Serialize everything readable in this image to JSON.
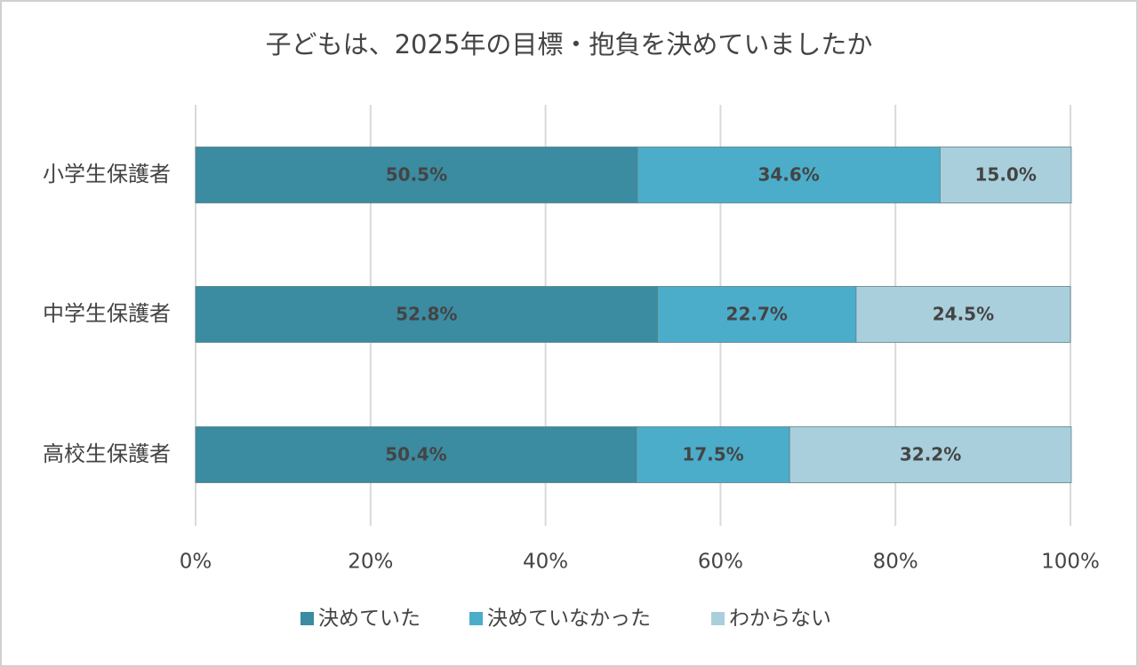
{
  "chart_data": {
    "type": "stacked_barh",
    "title": "子どもは、2025年の目標・抱負を決めていましたか",
    "categories": [
      "小学生保護者",
      "中学生保護者",
      "高校生保護者"
    ],
    "series": [
      {
        "name": "決めていた",
        "color": "#3b8ba1",
        "values": [
          50.5,
          52.8,
          50.4
        ],
        "value_labels": [
          "50.5%",
          "52.8%",
          "50.4%"
        ]
      },
      {
        "name": "決めていなかった",
        "color": "#4badca",
        "values": [
          34.6,
          22.7,
          17.5
        ],
        "value_labels": [
          "34.6%",
          "22.7%",
          "17.5%"
        ]
      },
      {
        "name": "わからない",
        "color": "#a9cfdd",
        "values": [
          15.0,
          24.5,
          32.2
        ],
        "value_labels": [
          "15.0%",
          "24.5%",
          "32.2%"
        ]
      }
    ],
    "xlim": [
      0,
      100
    ],
    "xticks": [
      {
        "value": 0,
        "label": "0%"
      },
      {
        "value": 20,
        "label": "20%"
      },
      {
        "value": 40,
        "label": "40%"
      },
      {
        "value": 60,
        "label": "60%"
      },
      {
        "value": 80,
        "label": "80%"
      },
      {
        "value": 100,
        "label": "100%"
      }
    ],
    "grid": true,
    "legend": "bottom"
  }
}
